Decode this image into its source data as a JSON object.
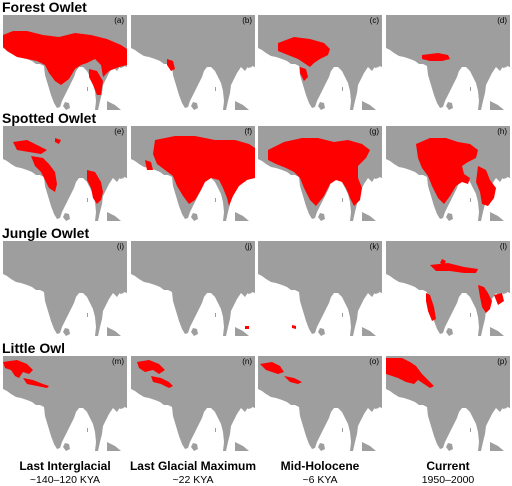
{
  "colors": {
    "land": "#9e9e9e",
    "range": "#ff0000",
    "sea": "#ffffff"
  },
  "species": [
    {
      "name": "Forest Owlet",
      "panels": [
        {
          "label": "(a)",
          "range": "forest_interglacial"
        },
        {
          "label": "(b)",
          "range": "forest_lgm"
        },
        {
          "label": "(c)",
          "range": "forest_holocene"
        },
        {
          "label": "(d)",
          "range": "forest_current"
        }
      ]
    },
    {
      "name": "Spotted Owlet",
      "panels": [
        {
          "label": "(e)",
          "range": "spotted_interglacial"
        },
        {
          "label": "(f)",
          "range": "spotted_lgm"
        },
        {
          "label": "(g)",
          "range": "spotted_holocene"
        },
        {
          "label": "(h)",
          "range": "spotted_current"
        }
      ]
    },
    {
      "name": "Jungle Owlet",
      "panels": [
        {
          "label": "(i)",
          "range": "jungle_interglacial"
        },
        {
          "label": "(j)",
          "range": "jungle_lgm"
        },
        {
          "label": "(k)",
          "range": "jungle_holocene"
        },
        {
          "label": "(l)",
          "range": "jungle_current"
        }
      ]
    },
    {
      "name": "Little Owl",
      "panels": [
        {
          "label": "(m)",
          "range": "little_interglacial"
        },
        {
          "label": "(n)",
          "range": "little_lgm"
        },
        {
          "label": "(o)",
          "range": "little_holocene"
        },
        {
          "label": "(p)",
          "range": "little_current"
        }
      ]
    }
  ],
  "periods": [
    {
      "title": "Last Interglacial",
      "subtitle": "~140–120 KYA"
    },
    {
      "title": "Last Glacial Maximum",
      "subtitle": "~22 KYA"
    },
    {
      "title": "Mid-Holocene",
      "subtitle": "~6 KYA"
    },
    {
      "title": "Current",
      "subtitle": "1950–2000"
    }
  ]
}
